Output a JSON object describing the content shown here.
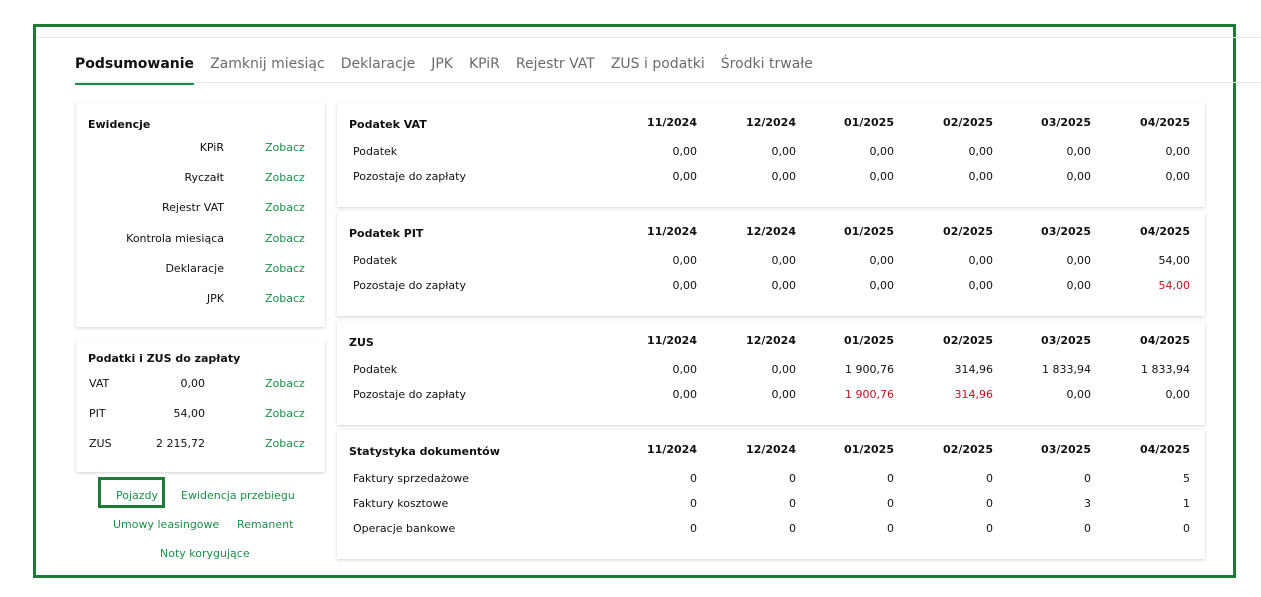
{
  "tabs": [
    "Podsumowanie",
    "Zamknij miesiąc",
    "Deklaracje",
    "JPK",
    "KPiR",
    "Rejestr VAT",
    "ZUS i podatki",
    "Środki trwałe"
  ],
  "ewidencje": {
    "title": "Ewidencje",
    "items": [
      {
        "label": "KPiR",
        "link": "Zobacz"
      },
      {
        "label": "Ryczałt",
        "link": "Zobacz"
      },
      {
        "label": "Rejestr VAT",
        "link": "Zobacz"
      },
      {
        "label": "Kontrola miesiąca",
        "link": "Zobacz"
      },
      {
        "label": "Deklaracje",
        "link": "Zobacz"
      },
      {
        "label": "JPK",
        "link": "Zobacz"
      }
    ]
  },
  "podatki": {
    "title": "Podatki i ZUS do zapłaty",
    "items": [
      {
        "label": "VAT",
        "value": "0,00",
        "link": "Zobacz"
      },
      {
        "label": "PIT",
        "value": "54,00",
        "link": "Zobacz"
      },
      {
        "label": "ZUS",
        "value": "2 215,72",
        "link": "Zobacz"
      }
    ]
  },
  "bottom_links": [
    "Pojazdy",
    "Ewidencja przebiegu",
    "Umowy leasingowe",
    "Remanent",
    "Noty korygujące"
  ],
  "months": [
    "11/2024",
    "12/2024",
    "01/2025",
    "02/2025",
    "03/2025",
    "04/2025"
  ],
  "tables": [
    {
      "title": "Podatek VAT",
      "rows": [
        {
          "label": "Podatek",
          "values": [
            "0,00",
            "0,00",
            "0,00",
            "0,00",
            "0,00",
            "0,00"
          ],
          "red": [
            false,
            false,
            false,
            false,
            false,
            false
          ]
        },
        {
          "label": "Pozostaje do zapłaty",
          "values": [
            "0,00",
            "0,00",
            "0,00",
            "0,00",
            "0,00",
            "0,00"
          ],
          "red": [
            false,
            false,
            false,
            false,
            false,
            false
          ]
        }
      ]
    },
    {
      "title": "Podatek PIT",
      "rows": [
        {
          "label": "Podatek",
          "values": [
            "0,00",
            "0,00",
            "0,00",
            "0,00",
            "0,00",
            "54,00"
          ],
          "red": [
            false,
            false,
            false,
            false,
            false,
            false
          ]
        },
        {
          "label": "Pozostaje do zapłaty",
          "values": [
            "0,00",
            "0,00",
            "0,00",
            "0,00",
            "0,00",
            "54,00"
          ],
          "red": [
            false,
            false,
            false,
            false,
            false,
            true
          ]
        }
      ]
    },
    {
      "title": "ZUS",
      "rows": [
        {
          "label": "Podatek",
          "values": [
            "0,00",
            "0,00",
            "1 900,76",
            "314,96",
            "1 833,94",
            "1 833,94"
          ],
          "red": [
            false,
            false,
            false,
            false,
            false,
            false
          ]
        },
        {
          "label": "Pozostaje do zapłaty",
          "values": [
            "0,00",
            "0,00",
            "1 900,76",
            "314,96",
            "0,00",
            "0,00"
          ],
          "red": [
            false,
            false,
            true,
            true,
            false,
            false
          ]
        }
      ]
    },
    {
      "title": "Statystyka dokumentów",
      "rows": [
        {
          "label": "Faktury sprzedażowe",
          "values": [
            "0",
            "0",
            "0",
            "0",
            "0",
            "5"
          ],
          "red": [
            false,
            false,
            false,
            false,
            false,
            false
          ]
        },
        {
          "label": "Faktury kosztowe",
          "values": [
            "0",
            "0",
            "0",
            "0",
            "3",
            "1"
          ],
          "red": [
            false,
            false,
            false,
            false,
            false,
            false
          ]
        },
        {
          "label": "Operacje bankowe",
          "values": [
            "0",
            "0",
            "0",
            "0",
            "0",
            "0"
          ],
          "red": [
            false,
            false,
            false,
            false,
            false,
            false
          ]
        }
      ]
    }
  ],
  "colors": {
    "accent": "#1a8f4a",
    "frame": "#1e7a34",
    "negative": "#c0111f"
  }
}
